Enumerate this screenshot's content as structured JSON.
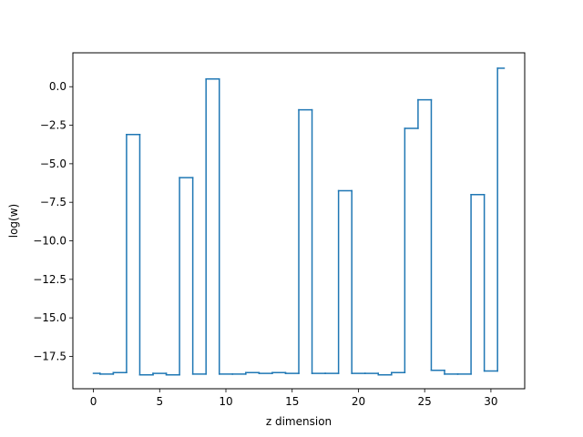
{
  "chart_data": {
    "type": "line",
    "drawstyle": "steps-mid",
    "title": "",
    "xlabel": "z dimension",
    "ylabel": "log(w)",
    "xlim": [
      -1.55,
      32.55
    ],
    "ylim": [
      -19.6,
      2.2
    ],
    "grid": false,
    "legend": "none",
    "colors": {
      "series": "#1f77b4",
      "axes": "#000000",
      "background": "#ffffff"
    },
    "x_ticks": [
      0,
      5,
      10,
      15,
      20,
      25,
      30
    ],
    "x_tick_labels": [
      "0",
      "5",
      "10",
      "15",
      "20",
      "25",
      "30"
    ],
    "y_ticks": [
      0,
      -2.5,
      -5,
      -7.5,
      -10,
      -12.5,
      -15,
      -17.5
    ],
    "y_tick_labels": [
      "0.0",
      "−2.5",
      "−5.0",
      "−7.5",
      "−10.0",
      "−12.5",
      "−15.0",
      "−17.5"
    ],
    "series": [
      {
        "x": [
          0,
          1,
          2,
          3,
          4,
          5,
          6,
          7,
          8,
          9,
          10,
          11,
          12,
          13,
          14,
          15,
          16,
          17,
          18,
          19,
          20,
          21,
          22,
          23,
          24,
          25,
          26,
          27,
          28,
          29,
          30,
          31
        ],
        "values": [
          -18.6,
          -18.65,
          -18.55,
          -3.1,
          -18.7,
          -18.6,
          -18.7,
          -5.9,
          -18.65,
          0.5,
          -18.65,
          -18.65,
          -18.55,
          -18.6,
          -18.55,
          -18.6,
          -1.5,
          -18.6,
          -18.6,
          -6.75,
          -18.6,
          -18.6,
          -18.7,
          -18.55,
          -2.7,
          -0.85,
          -18.4,
          -18.65,
          -18.65,
          -7.0,
          -18.45,
          1.2
        ]
      }
    ]
  }
}
